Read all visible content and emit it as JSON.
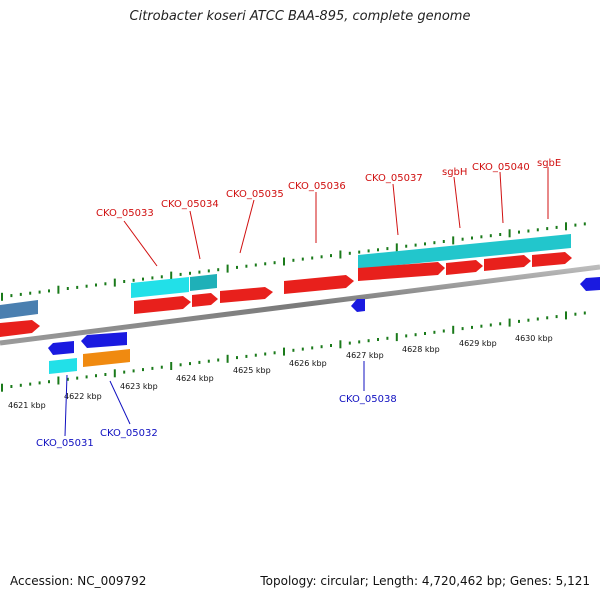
{
  "title": "Citrobacter koseri ATCC BAA-895, complete genome",
  "footer": {
    "accession": "Accession: NC_009792",
    "summary": "Topology: circular; Length: 4,720,462 bp; Genes: 5,121"
  },
  "colors": {
    "plus_gene": "#e8201c",
    "minus_gene": "#1a1ae0",
    "cyan_feature": "#22d8e0",
    "teal_feature": "#1fb0b8",
    "orange_feature": "#f08a10",
    "steelblue_feature": "#4a7fb0",
    "tick": "#1a7a1a",
    "backbone": "#8a8a8a"
  },
  "ruler": {
    "labels": [
      "4621 kbp",
      "4622 kbp",
      "4623 kbp",
      "4624 kbp",
      "4625 kbp",
      "4626 kbp",
      "4627 kbp",
      "4628 kbp",
      "4629 kbp",
      "4630 kbp"
    ]
  },
  "plus_labels": [
    "CKO_05033",
    "CKO_05034",
    "CKO_05035",
    "CKO_05036",
    "CKO_05037",
    "sgbH",
    "CKO_05040",
    "sgbE"
  ],
  "minus_labels": [
    "CKO_05031",
    "CKO_05032",
    "CKO_05038"
  ]
}
